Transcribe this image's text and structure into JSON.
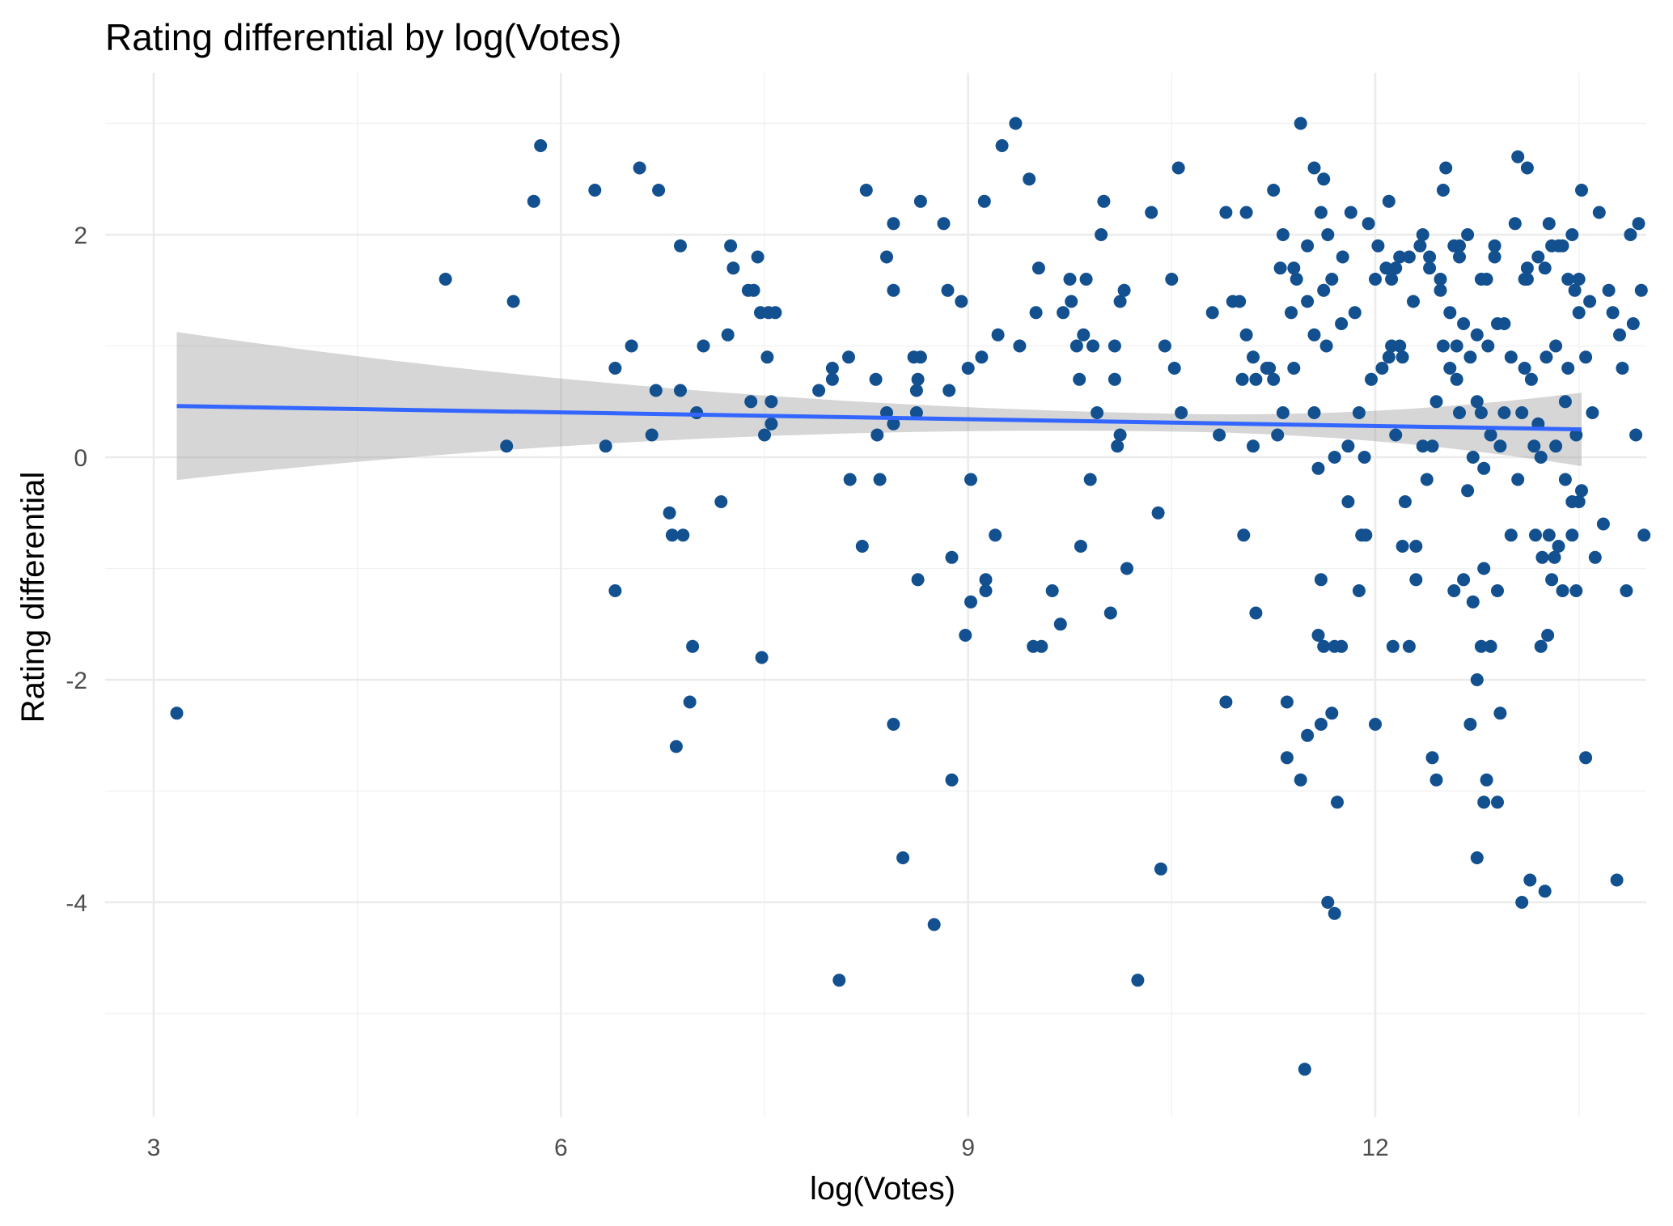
{
  "chart_data": {
    "type": "scatter",
    "title": "Rating differential by log(Votes)",
    "xlabel": "log(Votes)",
    "ylabel": "Rating differential",
    "xlim": [
      2.45,
      13.6
    ],
    "ylim": [
      -5.95,
      3.3
    ],
    "x_ticks": [
      3,
      6,
      9,
      12
    ],
    "x_tick_labels": [
      "3",
      "6",
      "9",
      "12"
    ],
    "x_minor_ticks": [
      4.5,
      7.5,
      10.5,
      13.5
    ],
    "y_ticks": [
      -4,
      -2,
      0,
      2
    ],
    "y_tick_labels": [
      "-4",
      "-2",
      "0",
      "2"
    ],
    "y_minor_ticks": [
      -5,
      -3,
      -1,
      1,
      3
    ],
    "grid": true,
    "legend": "none",
    "colors": {
      "points": "#12508f",
      "fit_line": "#3366ff",
      "confidence_band": "#999999"
    },
    "fit": {
      "method": "linear",
      "x_range": [
        3.17,
        13.52
      ],
      "y_at_start": 0.46,
      "y_at_end": 0.25,
      "band_lower": [
        -0.2,
        -0.08
      ],
      "band_upper": [
        1.13,
        0.58
      ]
    },
    "points": [
      [
        3.17,
        -2.3
      ],
      [
        5.15,
        1.6
      ],
      [
        5.6,
        0.1
      ],
      [
        5.65,
        1.4
      ],
      [
        5.8,
        2.3
      ],
      [
        5.85,
        2.8
      ],
      [
        6.25,
        2.4
      ],
      [
        6.33,
        0.1
      ],
      [
        6.4,
        0.8
      ],
      [
        6.4,
        -1.2
      ],
      [
        6.52,
        1.0
      ],
      [
        6.58,
        2.6
      ],
      [
        6.67,
        0.2
      ],
      [
        6.7,
        0.6
      ],
      [
        6.72,
        2.4
      ],
      [
        6.8,
        -0.5
      ],
      [
        6.82,
        -0.7
      ],
      [
        6.85,
        -2.6
      ],
      [
        6.88,
        1.9
      ],
      [
        6.88,
        0.6
      ],
      [
        6.9,
        -0.7
      ],
      [
        6.95,
        -2.2
      ],
      [
        6.97,
        -1.7
      ],
      [
        7.0,
        0.4
      ],
      [
        7.05,
        1.0
      ],
      [
        7.18,
        -0.4
      ],
      [
        7.23,
        1.1
      ],
      [
        7.25,
        1.9
      ],
      [
        7.27,
        1.7
      ],
      [
        7.38,
        1.5
      ],
      [
        7.4,
        0.5
      ],
      [
        7.42,
        1.5
      ],
      [
        7.45,
        1.8
      ],
      [
        7.47,
        1.3
      ],
      [
        7.48,
        -1.8
      ],
      [
        7.5,
        0.2
      ],
      [
        7.52,
        0.9
      ],
      [
        7.53,
        1.3
      ],
      [
        7.55,
        0.5
      ],
      [
        7.55,
        0.3
      ],
      [
        7.58,
        1.3
      ],
      [
        7.9,
        0.6
      ],
      [
        8.0,
        0.8
      ],
      [
        8.0,
        0.7
      ],
      [
        8.05,
        -4.7
      ],
      [
        8.12,
        0.9
      ],
      [
        8.13,
        -0.2
      ],
      [
        8.22,
        -0.8
      ],
      [
        8.25,
        2.4
      ],
      [
        8.32,
        0.7
      ],
      [
        8.33,
        0.2
      ],
      [
        8.35,
        -0.2
      ],
      [
        8.4,
        1.8
      ],
      [
        8.4,
        0.4
      ],
      [
        8.45,
        2.1
      ],
      [
        8.45,
        -2.4
      ],
      [
        8.45,
        1.5
      ],
      [
        8.45,
        0.3
      ],
      [
        8.52,
        -3.6
      ],
      [
        8.6,
        0.9
      ],
      [
        8.62,
        0.6
      ],
      [
        8.62,
        0.4
      ],
      [
        8.63,
        0.7
      ],
      [
        8.63,
        -1.1
      ],
      [
        8.65,
        2.3
      ],
      [
        8.65,
        0.9
      ],
      [
        8.75,
        -4.2
      ],
      [
        8.82,
        2.1
      ],
      [
        8.85,
        1.5
      ],
      [
        8.86,
        0.6
      ],
      [
        8.88,
        -0.9
      ],
      [
        8.88,
        -2.9
      ],
      [
        8.95,
        1.4
      ],
      [
        8.98,
        -1.6
      ],
      [
        9.0,
        0.8
      ],
      [
        9.02,
        -0.2
      ],
      [
        9.02,
        -1.3
      ],
      [
        9.1,
        0.9
      ],
      [
        9.12,
        2.3
      ],
      [
        9.13,
        -1.1
      ],
      [
        9.13,
        -1.2
      ],
      [
        9.2,
        -0.7
      ],
      [
        9.22,
        1.1
      ],
      [
        9.25,
        2.8
      ],
      [
        9.35,
        3.0
      ],
      [
        9.38,
        1.0
      ],
      [
        9.45,
        2.5
      ],
      [
        9.48,
        -1.7
      ],
      [
        9.5,
        1.3
      ],
      [
        9.52,
        1.7
      ],
      [
        9.54,
        -1.7
      ],
      [
        9.62,
        -1.2
      ],
      [
        9.68,
        -1.5
      ],
      [
        9.7,
        1.3
      ],
      [
        9.75,
        1.6
      ],
      [
        9.76,
        1.4
      ],
      [
        9.8,
        1.0
      ],
      [
        9.82,
        0.7
      ],
      [
        9.83,
        -0.8
      ],
      [
        9.85,
        1.1
      ],
      [
        9.87,
        1.6
      ],
      [
        9.9,
        -0.2
      ],
      [
        9.92,
        1.0
      ],
      [
        9.95,
        0.4
      ],
      [
        9.98,
        2.0
      ],
      [
        10.0,
        2.3
      ],
      [
        10.05,
        -1.4
      ],
      [
        10.08,
        1.0
      ],
      [
        10.08,
        0.7
      ],
      [
        10.1,
        0.1
      ],
      [
        10.12,
        0.2
      ],
      [
        10.12,
        1.4
      ],
      [
        10.15,
        1.5
      ],
      [
        10.17,
        -1.0
      ],
      [
        10.25,
        -4.7
      ],
      [
        10.35,
        2.2
      ],
      [
        10.4,
        -0.5
      ],
      [
        10.42,
        -3.7
      ],
      [
        10.45,
        1.0
      ],
      [
        10.5,
        1.6
      ],
      [
        10.52,
        0.8
      ],
      [
        10.55,
        2.6
      ],
      [
        10.57,
        0.4
      ],
      [
        10.8,
        1.3
      ],
      [
        10.85,
        0.2
      ],
      [
        10.9,
        2.2
      ],
      [
        10.9,
        -2.2
      ],
      [
        10.95,
        1.4
      ],
      [
        11.0,
        1.4
      ],
      [
        11.02,
        0.7
      ],
      [
        11.03,
        -0.7
      ],
      [
        11.05,
        1.1
      ],
      [
        11.1,
        0.1
      ],
      [
        11.12,
        -1.4
      ],
      [
        11.12,
        0.7
      ],
      [
        11.22,
        0.8
      ],
      [
        11.25,
        2.4
      ],
      [
        11.32,
        0.4
      ],
      [
        11.35,
        -2.2
      ],
      [
        11.38,
        1.3
      ],
      [
        11.4,
        0.8
      ],
      [
        11.5,
        1.4
      ],
      [
        11.5,
        1.9
      ],
      [
        11.55,
        1.1
      ],
      [
        11.58,
        -1.6
      ],
      [
        11.6,
        2.2
      ],
      [
        11.6,
        -1.1
      ],
      [
        11.62,
        1.5
      ],
      [
        11.64,
        1.0
      ],
      [
        11.65,
        -4.0
      ],
      [
        11.68,
        -2.3
      ],
      [
        11.7,
        -4.1
      ],
      [
        11.7,
        0.0
      ],
      [
        11.75,
        1.2
      ],
      [
        11.8,
        -0.4
      ],
      [
        11.82,
        2.2
      ],
      [
        11.85,
        1.3
      ],
      [
        11.88,
        0.4
      ],
      [
        11.88,
        -1.2
      ],
      [
        11.92,
        0.0
      ],
      [
        11.93,
        -0.7
      ],
      [
        11.97,
        0.7
      ],
      [
        12.0,
        -2.4
      ],
      [
        12.05,
        0.8
      ],
      [
        12.1,
        0.9
      ],
      [
        12.12,
        1.0
      ],
      [
        12.13,
        -1.7
      ],
      [
        12.15,
        0.2
      ],
      [
        12.18,
        1.0
      ],
      [
        12.2,
        0.9
      ],
      [
        12.22,
        -0.4
      ],
      [
        12.25,
        -1.7
      ],
      [
        12.28,
        1.4
      ],
      [
        12.3,
        -0.8
      ],
      [
        12.35,
        2.0
      ],
      [
        12.4,
        1.7
      ],
      [
        12.42,
        -2.7
      ],
      [
        12.45,
        -2.9
      ],
      [
        12.48,
        1.6
      ],
      [
        12.5,
        1.0
      ],
      [
        12.52,
        2.6
      ],
      [
        12.55,
        0.8
      ],
      [
        12.58,
        1.9
      ],
      [
        12.6,
        0.7
      ],
      [
        12.62,
        0.4
      ],
      [
        12.62,
        1.9
      ],
      [
        12.65,
        1.2
      ],
      [
        12.68,
        2.0
      ],
      [
        12.7,
        -2.4
      ],
      [
        12.72,
        0.0
      ],
      [
        12.75,
        -3.6
      ],
      [
        12.75,
        0.5
      ],
      [
        12.75,
        -2.0
      ],
      [
        12.78,
        1.6
      ],
      [
        12.78,
        -1.7
      ],
      [
        12.8,
        -0.1
      ],
      [
        12.8,
        -3.1
      ],
      [
        12.82,
        1.6
      ],
      [
        12.83,
        1.0
      ],
      [
        12.85,
        -1.7
      ],
      [
        12.88,
        1.8
      ],
      [
        12.9,
        -3.1
      ],
      [
        12.9,
        1.2
      ],
      [
        12.92,
        0.1
      ],
      [
        12.95,
        0.4
      ],
      [
        13.0,
        -0.7
      ],
      [
        13.03,
        2.1
      ],
      [
        13.05,
        -0.2
      ],
      [
        13.08,
        -4.0
      ],
      [
        13.1,
        1.6
      ],
      [
        13.12,
        1.7
      ],
      [
        13.12,
        1.6
      ],
      [
        13.15,
        0.7
      ],
      [
        13.17,
        0.1
      ],
      [
        13.2,
        1.8
      ],
      [
        13.22,
        0.0
      ],
      [
        13.23,
        -0.9
      ],
      [
        13.25,
        -3.9
      ],
      [
        13.25,
        1.7
      ],
      [
        13.27,
        -1.6
      ],
      [
        13.28,
        -0.7
      ],
      [
        13.3,
        -1.1
      ],
      [
        13.3,
        1.9
      ],
      [
        13.33,
        1.0
      ],
      [
        13.33,
        0.1
      ],
      [
        13.35,
        -0.8
      ],
      [
        13.38,
        1.9
      ],
      [
        13.4,
        -0.2
      ],
      [
        13.4,
        0.5
      ],
      [
        13.42,
        1.6
      ],
      [
        13.45,
        -0.4
      ],
      [
        13.45,
        -0.7
      ],
      [
        13.47,
        1.5
      ],
      [
        13.48,
        -1.2
      ],
      [
        13.48,
        0.2
      ],
      [
        13.5,
        -0.4
      ],
      [
        13.5,
        1.3
      ],
      [
        13.52,
        -0.3
      ],
      [
        13.52,
        2.4
      ],
      [
        13.55,
        0.9
      ],
      [
        11.42,
        1.6
      ],
      [
        11.45,
        3.0
      ],
      [
        11.55,
        2.6
      ],
      [
        11.62,
        2.5
      ],
      [
        11.65,
        2.0
      ],
      [
        11.4,
        1.7
      ],
      [
        11.3,
        1.7
      ],
      [
        11.32,
        2.0
      ],
      [
        11.05,
        2.2
      ],
      [
        11.1,
        0.9
      ],
      [
        11.2,
        0.8
      ],
      [
        11.25,
        0.7
      ],
      [
        11.28,
        0.2
      ],
      [
        11.35,
        -2.7
      ],
      [
        11.45,
        -2.9
      ],
      [
        11.5,
        -2.5
      ],
      [
        11.55,
        0.4
      ],
      [
        11.6,
        -2.4
      ],
      [
        11.58,
        -0.1
      ],
      [
        11.62,
        -1.7
      ],
      [
        11.75,
        -1.7
      ],
      [
        11.8,
        0.1
      ],
      [
        11.7,
        -1.7
      ],
      [
        11.68,
        1.6
      ],
      [
        11.72,
        -3.1
      ],
      [
        11.76,
        1.8
      ],
      [
        11.48,
        -5.5
      ],
      [
        11.9,
        -0.7
      ],
      [
        11.95,
        2.1
      ],
      [
        12.0,
        1.6
      ],
      [
        12.02,
        1.9
      ],
      [
        12.08,
        1.7
      ],
      [
        12.1,
        2.3
      ],
      [
        12.12,
        1.6
      ],
      [
        12.15,
        1.7
      ],
      [
        12.18,
        1.8
      ],
      [
        12.2,
        -0.8
      ],
      [
        12.25,
        1.8
      ],
      [
        12.3,
        -1.1
      ],
      [
        12.33,
        1.9
      ],
      [
        12.35,
        0.1
      ],
      [
        12.38,
        -0.2
      ],
      [
        12.4,
        1.8
      ],
      [
        12.42,
        0.1
      ],
      [
        12.45,
        0.5
      ],
      [
        12.48,
        1.5
      ],
      [
        12.5,
        2.4
      ],
      [
        12.55,
        1.3
      ],
      [
        12.58,
        -1.2
      ],
      [
        12.6,
        1.0
      ],
      [
        12.62,
        1.8
      ],
      [
        12.65,
        -1.1
      ],
      [
        12.68,
        -0.3
      ],
      [
        12.7,
        0.9
      ],
      [
        12.72,
        -1.3
      ],
      [
        12.75,
        1.1
      ],
      [
        12.78,
        0.4
      ],
      [
        12.8,
        -1.0
      ],
      [
        12.82,
        -2.9
      ],
      [
        12.85,
        0.2
      ],
      [
        12.88,
        1.9
      ],
      [
        12.9,
        -1.2
      ],
      [
        12.92,
        -2.3
      ],
      [
        12.95,
        1.2
      ],
      [
        13.0,
        0.9
      ],
      [
        13.05,
        2.7
      ],
      [
        13.08,
        0.4
      ],
      [
        13.1,
        0.8
      ],
      [
        13.12,
        2.6
      ],
      [
        13.14,
        -3.8
      ],
      [
        13.18,
        -0.7
      ],
      [
        13.2,
        0.3
      ],
      [
        13.22,
        -1.7
      ],
      [
        13.26,
        0.9
      ],
      [
        13.28,
        2.1
      ],
      [
        13.32,
        -0.9
      ],
      [
        13.35,
        1.9
      ],
      [
        13.38,
        -1.2
      ],
      [
        13.42,
        0.8
      ],
      [
        13.45,
        2.0
      ],
      [
        13.5,
        1.6
      ],
      [
        13.55,
        -2.7
      ],
      [
        13.58,
        1.4
      ],
      [
        13.6,
        0.4
      ],
      [
        13.62,
        -0.9
      ],
      [
        13.65,
        2.2
      ],
      [
        13.68,
        -0.6
      ],
      [
        13.72,
        1.5
      ],
      [
        13.75,
        1.3
      ],
      [
        13.78,
        -3.8
      ],
      [
        13.8,
        1.1
      ],
      [
        13.82,
        0.8
      ],
      [
        13.85,
        -1.2
      ],
      [
        13.88,
        2.0
      ],
      [
        13.9,
        1.2
      ],
      [
        13.92,
        0.2
      ],
      [
        13.94,
        2.1
      ],
      [
        13.96,
        1.5
      ],
      [
        13.98,
        -0.7
      ],
      [
        14.0,
        0.6
      ]
    ]
  }
}
